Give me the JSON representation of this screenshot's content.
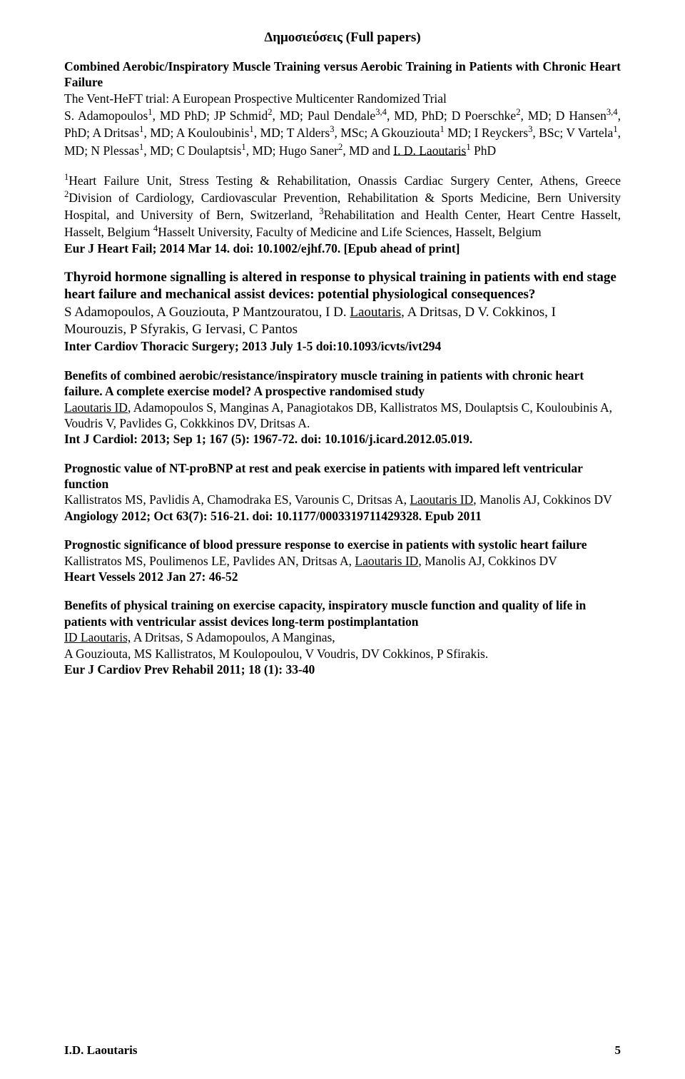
{
  "pageTitle": "Δημοσιεύσεις (Full papers)",
  "p1": {
    "title": "Combined Aerobic/Inspiratory Muscle Training versus Aerobic Training in Patients with Chronic Heart Failure",
    "sub": "The Vent-HeFT trial: A European Prospective Multicenter Randomized Trial",
    "auth_a": "S. Adamopoulos",
    "s1": "1",
    "auth_b": ", MD PhD; JP Schmid",
    "s2": "2",
    "auth_c": ", MD; Paul Dendale",
    "s3": "3,4",
    "auth_d": ", MD, PhD; D Poerschke",
    "s4": "2",
    "auth_e": ", MD; D Hansen",
    "s5": "3,4",
    "auth_f": ", PhD; A Dritsas",
    "s6": "1",
    "auth_g": ", MD; A Kouloubinis",
    "s7": "1",
    "auth_h": ", MD; T Alders",
    "s8": "3",
    "auth_i": ", MSc; A Gkouziouta",
    "s9": "1",
    "auth_j": " MD; I Reyckers",
    "s10": "3",
    "auth_k": ", BSc; V Vartela",
    "s11": "1",
    "auth_l": ", MD; N Plessas",
    "s12": "1",
    "auth_m": ", MD; C Doulaptsis",
    "s13": "1",
    "auth_n": ", MD; Hugo Saner",
    "s14": "2",
    "auth_o": ", MD and ",
    "auth_u": "I. D. Laoutaris",
    "s15": "1",
    "auth_p": " PhD"
  },
  "aff": {
    "s1": "1",
    "a": "Heart Failure Unit, Stress Testing & Rehabilitation, Onassis Cardiac Surgery Center, Athens, Greece ",
    "s2": "2",
    "b": "Division of Cardiology, Cardiovascular Prevention, Rehabilitation & Sports Medicine, Bern University Hospital, and University of Bern, Switzerland, ",
    "s3": "3",
    "c": "Rehabilitation and Health Center, Heart Centre Hasselt, Hasselt, Belgium ",
    "s4": "4",
    "d": "Hasselt University, Faculty of Medicine and Life Sciences, Hasselt, Belgium",
    "ref": "Eur J Heart Fail; 2014 Mar 14. doi: 10.1002/ejhf.70. [Epub ahead of print]"
  },
  "p2": {
    "t1": "Thyroid hormone signalling is altered in response to physical training in patients with end stage heart failure and mechanical assist devices: potential physiological consequences?",
    "a1": "S Adamopoulos, A Gouziouta, P Mantzouratou, I D. ",
    "au": "Laoutaris",
    "a2": ", A Dritsas,  D V. Cokkinos, I Mourouzis, P Sfyrakis,  G Iervasi, C Pantos",
    "ref": "Inter Cardiov Thoracic Surgery; 2013 July 1-5 doi:10.1093/icvts/ivt294"
  },
  "p3": {
    "t1": "Benefits of combined aerobic/resistance/inspiratory muscle training in patients with chronic heart failure. A complete exercise model? A prospective randomised study",
    "au": "Laoutaris ID",
    "a1": ", Adamopoulos S, Manginas A, Panagiotakos DB, Kallistratos MS, Doulaptsis C, Kouloubinis A, Voudris V, Pavlides G, Cokkkinos DV, Dritsas A.",
    "ref": "Int J Cardiol: 2013; Sep 1; 167 (5): 1967-72. doi: 10.1016/j.icard.2012.05.019."
  },
  "p4": {
    "t1": "Prognostic value of NT-proBNP at rest and peak exercise in patients with impared left ventricular function",
    "a1": "Kallistratos MS, Pavlidis A, Chamodraka ES, Varounis C, Dritsas A, ",
    "au": "Laoutaris ID",
    "a2": ", Manolis AJ, Cokkinos DV",
    "ref": "Angiology 2012; Oct 63(7): 516-21. doi: 10.1177/0003319711429328. Epub 2011"
  },
  "p5": {
    "t1": "Prognostic significance of blood pressure response to exercise in patients with systolic heart failure",
    "a1": "Kallistratos MS, Poulimenos LE, Pavlides AN, Dritsas A, ",
    "au": "Laoutaris ID",
    "a2": ", Manolis AJ, Cokkinos DV",
    "ref": "Heart Vessels 2012 Jan 27: 46-52"
  },
  "p6": {
    "t1": "Benefits of physical training on exercise capacity, inspiratory muscle function and quality of life in patients with ventricular assist devices long-term postimplantation",
    "au": "ID Laoutaris,",
    "a1": " A Dritsas, S Adamopoulos, A Manginas,",
    "a2": "A Gouziouta, MS Kallistratos, M Koulopoulou, V Voudris, DV Cokkinos, P Sfirakis.",
    "ref": "Eur J Cardiov Prev Rehabil 2011; 18 (1): 33-40"
  },
  "footer": {
    "name": "I.D. Laoutaris",
    "page": "5"
  }
}
